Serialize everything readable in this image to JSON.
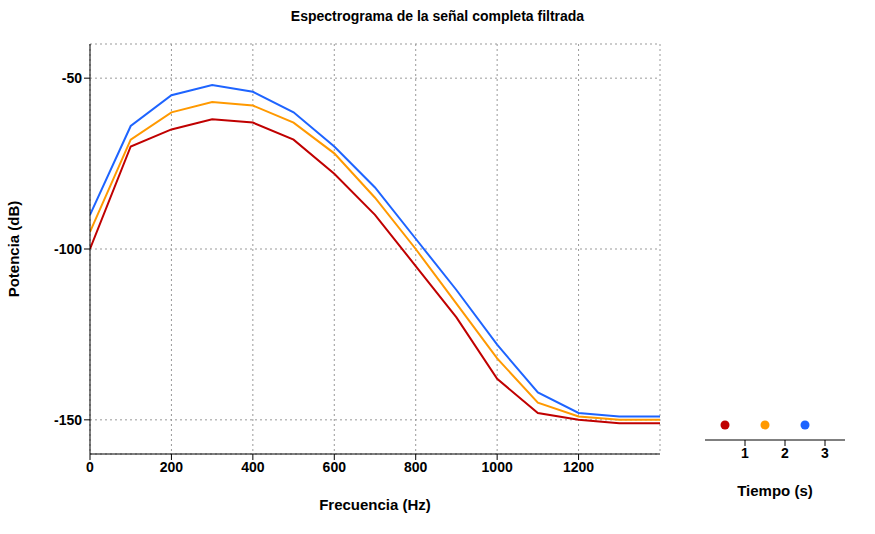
{
  "chart_data": {
    "type": "line",
    "title": "Espectrograma de la señal completa filtrada",
    "x_label": "Frecuencia (Hz)",
    "y_label": "Potencia (dB)",
    "time_label": "Tiempo (s)",
    "x": [
      0,
      100,
      200,
      300,
      400,
      500,
      600,
      700,
      800,
      900,
      1000,
      1100,
      1200,
      1300,
      1400
    ],
    "series": [
      {
        "time": 0.5,
        "color": "#c00000",
        "values": [
          -100,
          -70,
          -65,
          -62,
          -63,
          -68,
          -78,
          -90,
          -105,
          -120,
          -138,
          -148,
          -150,
          -151,
          -151
        ]
      },
      {
        "time": 1.5,
        "color": "#ff9900",
        "values": [
          -95,
          -68,
          -60,
          -57,
          -58,
          -63,
          -72,
          -85,
          -100,
          -116,
          -132,
          -145,
          -149,
          -150,
          -150
        ]
      },
      {
        "time": 2.5,
        "color": "#1e64ff",
        "values": [
          -90,
          -64,
          -55,
          -52,
          -54,
          -60,
          -70,
          -82,
          -97,
          -112,
          -128,
          -142,
          -148,
          -149,
          -149
        ]
      }
    ],
    "xlim": [
      0,
      1400
    ],
    "xticks": [
      0,
      200,
      400,
      600,
      800,
      1000,
      1200
    ],
    "ylim": [
      -160,
      -40
    ],
    "yticks": [
      -150,
      -100,
      -50
    ],
    "tlim": [
      0,
      3.5
    ],
    "tticks": [
      1,
      2,
      3
    ],
    "grid": true
  }
}
